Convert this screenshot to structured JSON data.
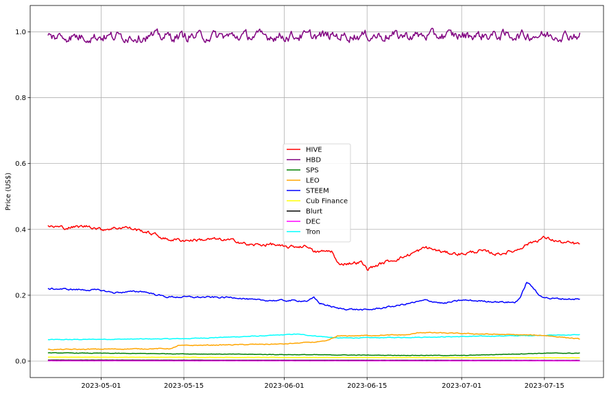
{
  "chart_data": {
    "type": "line",
    "title": "",
    "xlabel": "",
    "ylabel": "Price (US$)",
    "grid": true,
    "legend_position": "center",
    "xlim": [
      "2023-04-19",
      "2023-07-25"
    ],
    "ylim": [
      -0.05,
      1.08
    ],
    "x_ticks": [
      "2023-05-01",
      "2023-05-15",
      "2023-06-01",
      "2023-06-15",
      "2023-07-01",
      "2023-07-15"
    ],
    "y_ticks": [
      0.0,
      0.2,
      0.4,
      0.6,
      0.8,
      1.0
    ],
    "y_tick_labels": [
      "0.0",
      "0.2",
      "0.4",
      "0.6",
      "0.8",
      "1.0"
    ],
    "series": [
      {
        "name": "HIVE",
        "color": "#ff0000",
        "noise": 0.004,
        "points": [
          [
            "2023-04-22",
            0.41
          ],
          [
            "2023-04-25",
            0.405
          ],
          [
            "2023-04-29",
            0.41
          ],
          [
            "2023-05-01",
            0.4
          ],
          [
            "2023-05-05",
            0.407
          ],
          [
            "2023-05-08",
            0.395
          ],
          [
            "2023-05-10",
            0.385
          ],
          [
            "2023-05-12",
            0.37
          ],
          [
            "2023-05-15",
            0.367
          ],
          [
            "2023-05-20",
            0.37
          ],
          [
            "2023-05-24",
            0.365
          ],
          [
            "2023-05-26",
            0.352
          ],
          [
            "2023-05-30",
            0.355
          ],
          [
            "2023-06-01",
            0.345
          ],
          [
            "2023-06-05",
            0.35
          ],
          [
            "2023-06-06",
            0.33
          ],
          [
            "2023-06-09",
            0.335
          ],
          [
            "2023-06-10",
            0.295
          ],
          [
            "2023-06-14",
            0.3
          ],
          [
            "2023-06-15",
            0.28
          ],
          [
            "2023-06-18",
            0.3
          ],
          [
            "2023-06-21",
            0.315
          ],
          [
            "2023-06-25",
            0.345
          ],
          [
            "2023-06-28",
            0.33
          ],
          [
            "2023-07-01",
            0.325
          ],
          [
            "2023-07-04",
            0.335
          ],
          [
            "2023-07-07",
            0.325
          ],
          [
            "2023-07-10",
            0.335
          ],
          [
            "2023-07-12",
            0.355
          ],
          [
            "2023-07-15",
            0.375
          ],
          [
            "2023-07-18",
            0.36
          ],
          [
            "2023-07-21",
            0.355
          ]
        ]
      },
      {
        "name": "HBD",
        "color": "#800080",
        "noise": 0.012,
        "points": [
          [
            "2023-04-22",
            0.985
          ],
          [
            "2023-07-21",
            0.99
          ]
        ]
      },
      {
        "name": "SPS",
        "color": "#008000",
        "noise": 0.0006,
        "points": [
          [
            "2023-04-22",
            0.025
          ],
          [
            "2023-05-15",
            0.022
          ],
          [
            "2023-06-15",
            0.018
          ],
          [
            "2023-07-01",
            0.017
          ],
          [
            "2023-07-15",
            0.024
          ],
          [
            "2023-07-21",
            0.024
          ]
        ]
      },
      {
        "name": "LEO",
        "color": "#ffa500",
        "noise": 0.001,
        "points": [
          [
            "2023-04-22",
            0.035
          ],
          [
            "2023-05-13",
            0.038
          ],
          [
            "2023-05-14",
            0.047
          ],
          [
            "2023-06-01",
            0.052
          ],
          [
            "2023-06-08",
            0.06
          ],
          [
            "2023-06-10",
            0.076
          ],
          [
            "2023-06-22",
            0.08
          ],
          [
            "2023-06-24",
            0.087
          ],
          [
            "2023-07-05",
            0.082
          ],
          [
            "2023-07-15",
            0.078
          ],
          [
            "2023-07-21",
            0.067
          ]
        ]
      },
      {
        "name": "STEEM",
        "color": "#0000ff",
        "noise": 0.002,
        "points": [
          [
            "2023-04-22",
            0.22
          ],
          [
            "2023-05-01",
            0.215
          ],
          [
            "2023-05-03",
            0.208
          ],
          [
            "2023-05-08",
            0.212
          ],
          [
            "2023-05-12",
            0.195
          ],
          [
            "2023-05-24",
            0.193
          ],
          [
            "2023-05-27",
            0.185
          ],
          [
            "2023-06-05",
            0.183
          ],
          [
            "2023-06-06",
            0.192
          ],
          [
            "2023-06-07",
            0.176
          ],
          [
            "2023-06-10",
            0.16
          ],
          [
            "2023-06-15",
            0.155
          ],
          [
            "2023-06-20",
            0.168
          ],
          [
            "2023-06-25",
            0.185
          ],
          [
            "2023-06-28",
            0.175
          ],
          [
            "2023-07-01",
            0.185
          ],
          [
            "2023-07-10",
            0.178
          ],
          [
            "2023-07-11",
            0.195
          ],
          [
            "2023-07-12",
            0.24
          ],
          [
            "2023-07-13",
            0.225
          ],
          [
            "2023-07-14",
            0.2
          ],
          [
            "2023-07-16",
            0.19
          ],
          [
            "2023-07-21",
            0.188
          ]
        ]
      },
      {
        "name": "Cub Finance",
        "color": "#ffff00",
        "noise": 0.0003,
        "points": [
          [
            "2023-04-22",
            0.012
          ],
          [
            "2023-07-21",
            0.01
          ]
        ]
      },
      {
        "name": "Blurt",
        "color": "#000000",
        "noise": 0.0001,
        "points": [
          [
            "2023-04-22",
            0.003
          ],
          [
            "2023-07-21",
            0.002
          ]
        ]
      },
      {
        "name": "DEC",
        "color": "#ff00ff",
        "noise": 0.0001,
        "points": [
          [
            "2023-04-22",
            0.001
          ],
          [
            "2023-07-21",
            0.001
          ]
        ]
      },
      {
        "name": "Tron",
        "color": "#00ffff",
        "noise": 0.0008,
        "points": [
          [
            "2023-04-22",
            0.065
          ],
          [
            "2023-05-15",
            0.068
          ],
          [
            "2023-05-29",
            0.077
          ],
          [
            "2023-06-03",
            0.082
          ],
          [
            "2023-06-10",
            0.07
          ],
          [
            "2023-06-22",
            0.072
          ],
          [
            "2023-07-10",
            0.077
          ],
          [
            "2023-07-21",
            0.08
          ]
        ]
      }
    ]
  }
}
